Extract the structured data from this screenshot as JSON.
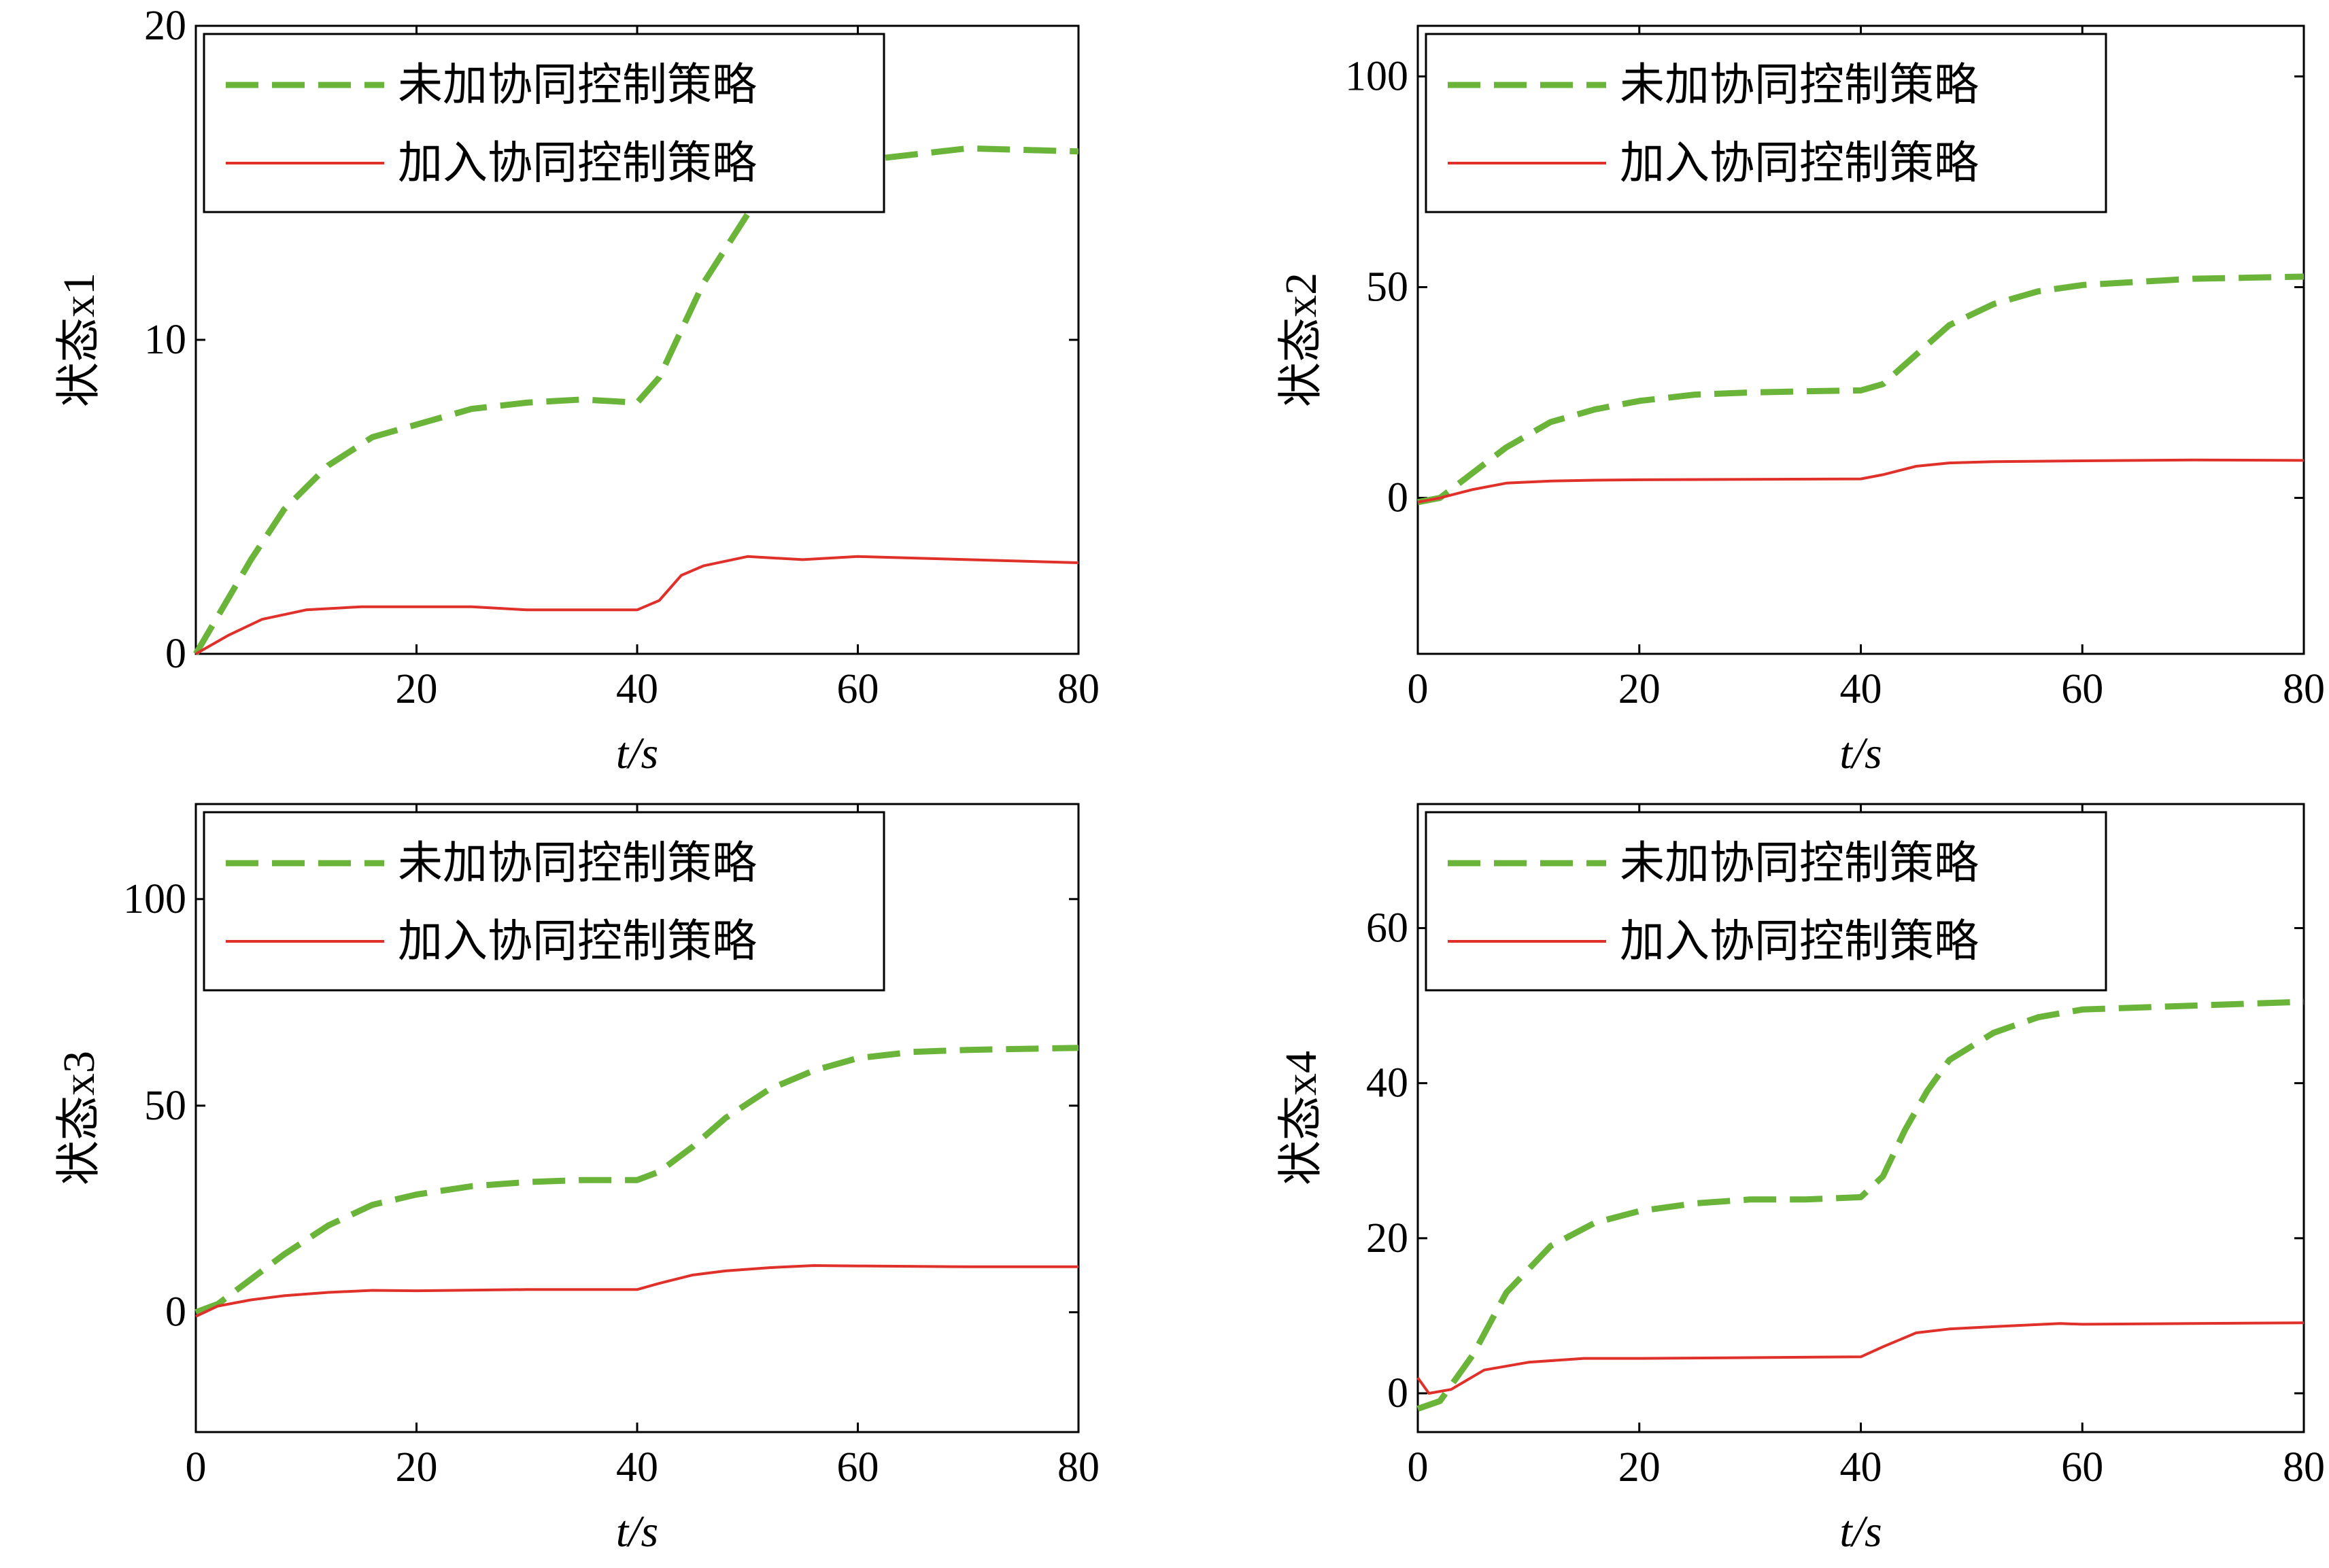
{
  "legend": {
    "no_coop_label": "未加协同控制策略",
    "with_coop_label": "加入协同控制策略"
  },
  "colors": {
    "no_coop": "#6bb43a",
    "with_coop": "#e0302a"
  },
  "chart_data": [
    {
      "type": "line",
      "xlabel": "t/s",
      "ylabel": "状态x1",
      "xlim": [
        0,
        80
      ],
      "ylim": [
        0,
        20
      ],
      "xticks": [
        20,
        40,
        60,
        80
      ],
      "yticks": [
        0,
        10,
        20
      ],
      "legend_position": "top-left",
      "series": [
        {
          "name": "未加协同控制策略",
          "style": "dashed",
          "x": [
            0,
            2,
            5,
            8,
            12,
            16,
            20,
            25,
            30,
            35,
            40,
            42,
            44,
            46,
            48,
            50,
            55,
            60,
            70,
            80
          ],
          "y": [
            0,
            1.2,
            3.0,
            4.6,
            6.0,
            6.9,
            7.3,
            7.8,
            8.0,
            8.1,
            8.0,
            8.8,
            10.3,
            11.8,
            12.9,
            14.0,
            15.2,
            15.7,
            16.1,
            16.0
          ]
        },
        {
          "name": "加入协同控制策略",
          "style": "solid",
          "x": [
            0,
            3,
            6,
            10,
            15,
            20,
            25,
            30,
            35,
            40,
            42,
            44,
            46,
            50,
            55,
            60,
            70,
            80
          ],
          "y": [
            0,
            0.6,
            1.1,
            1.4,
            1.5,
            1.5,
            1.5,
            1.4,
            1.4,
            1.4,
            1.7,
            2.5,
            2.8,
            3.1,
            3.0,
            3.1,
            3.0,
            2.9
          ]
        }
      ]
    },
    {
      "type": "line",
      "xlabel": "t/s",
      "ylabel": "状态x2",
      "xlim": [
        0,
        80
      ],
      "ylim": [
        -37,
        112
      ],
      "xticks": [
        0,
        20,
        40,
        60,
        80
      ],
      "yticks": [
        0,
        50,
        100
      ],
      "legend_position": "top-left",
      "series": [
        {
          "name": "未加协同控制策略",
          "style": "dashed",
          "x": [
            0,
            2,
            5,
            8,
            12,
            16,
            20,
            25,
            30,
            35,
            40,
            42,
            45,
            48,
            52,
            56,
            60,
            70,
            80
          ],
          "y": [
            -1,
            0,
            6,
            12,
            18,
            21,
            23,
            24.5,
            25,
            25.3,
            25.5,
            27,
            34,
            41,
            46,
            49,
            50.5,
            52,
            52.5
          ]
        },
        {
          "name": "加入协同控制策略",
          "style": "solid",
          "x": [
            0,
            2,
            5,
            8,
            12,
            16,
            20,
            30,
            40,
            42,
            45,
            48,
            52,
            60,
            70,
            80
          ],
          "y": [
            -1,
            0,
            2,
            3.5,
            4,
            4.2,
            4.3,
            4.4,
            4.5,
            5.5,
            7.5,
            8.3,
            8.6,
            8.8,
            9.0,
            8.9
          ]
        }
      ]
    },
    {
      "type": "line",
      "xlabel": "t/s",
      "ylabel": "状态x3",
      "xlim": [
        0,
        80
      ],
      "ylim": [
        -29,
        123
      ],
      "xticks": [
        0,
        20,
        40,
        60,
        80
      ],
      "yticks": [
        0,
        50,
        100
      ],
      "legend_position": "top-left",
      "series": [
        {
          "name": "未加协同控制策略",
          "style": "dashed",
          "x": [
            0,
            2,
            5,
            8,
            12,
            16,
            20,
            25,
            30,
            35,
            40,
            42,
            45,
            48,
            52,
            56,
            60,
            65,
            70,
            80
          ],
          "y": [
            0,
            2,
            8,
            14,
            21,
            26,
            28.5,
            30.5,
            31.5,
            32,
            32,
            34,
            40,
            47,
            54,
            58.5,
            61.5,
            63,
            63.5,
            64
          ]
        },
        {
          "name": "加入协同控制策略",
          "style": "solid",
          "x": [
            0,
            2,
            5,
            8,
            12,
            16,
            20,
            30,
            40,
            42,
            45,
            48,
            52,
            56,
            60,
            70,
            80
          ],
          "y": [
            -1,
            1.5,
            3,
            4,
            4.8,
            5.3,
            5.2,
            5.5,
            5.5,
            7,
            9,
            10,
            10.8,
            11.3,
            11.2,
            11,
            11
          ]
        }
      ]
    },
    {
      "type": "line",
      "xlabel": "t/s",
      "ylabel": "状态x4",
      "xlim": [
        0,
        80
      ],
      "ylim": [
        -5,
        76
      ],
      "xticks": [
        0,
        20,
        40,
        60,
        80
      ],
      "yticks": [
        0,
        20,
        40,
        60
      ],
      "legend_position": "top-left",
      "series": [
        {
          "name": "未加协同控制策略",
          "style": "dashed",
          "x": [
            0,
            2,
            5,
            8,
            12,
            16,
            20,
            25,
            30,
            35,
            40,
            42,
            44,
            46,
            48,
            52,
            56,
            60,
            70,
            80
          ],
          "y": [
            -2,
            -1,
            5,
            13,
            19,
            22,
            23.5,
            24.5,
            25,
            25,
            25.3,
            28,
            34,
            39,
            43,
            46.5,
            48.5,
            49.5,
            50,
            50.5
          ]
        },
        {
          "name": "加入协同控制策略",
          "style": "solid",
          "x": [
            0,
            1,
            3,
            6,
            10,
            15,
            20,
            30,
            40,
            42,
            45,
            48,
            52,
            58,
            60,
            70,
            80
          ],
          "y": [
            2,
            0,
            0.5,
            3,
            4,
            4.5,
            4.5,
            4.6,
            4.7,
            6,
            7.8,
            8.3,
            8.6,
            9.0,
            8.9,
            9.0,
            9.1
          ]
        }
      ]
    }
  ]
}
